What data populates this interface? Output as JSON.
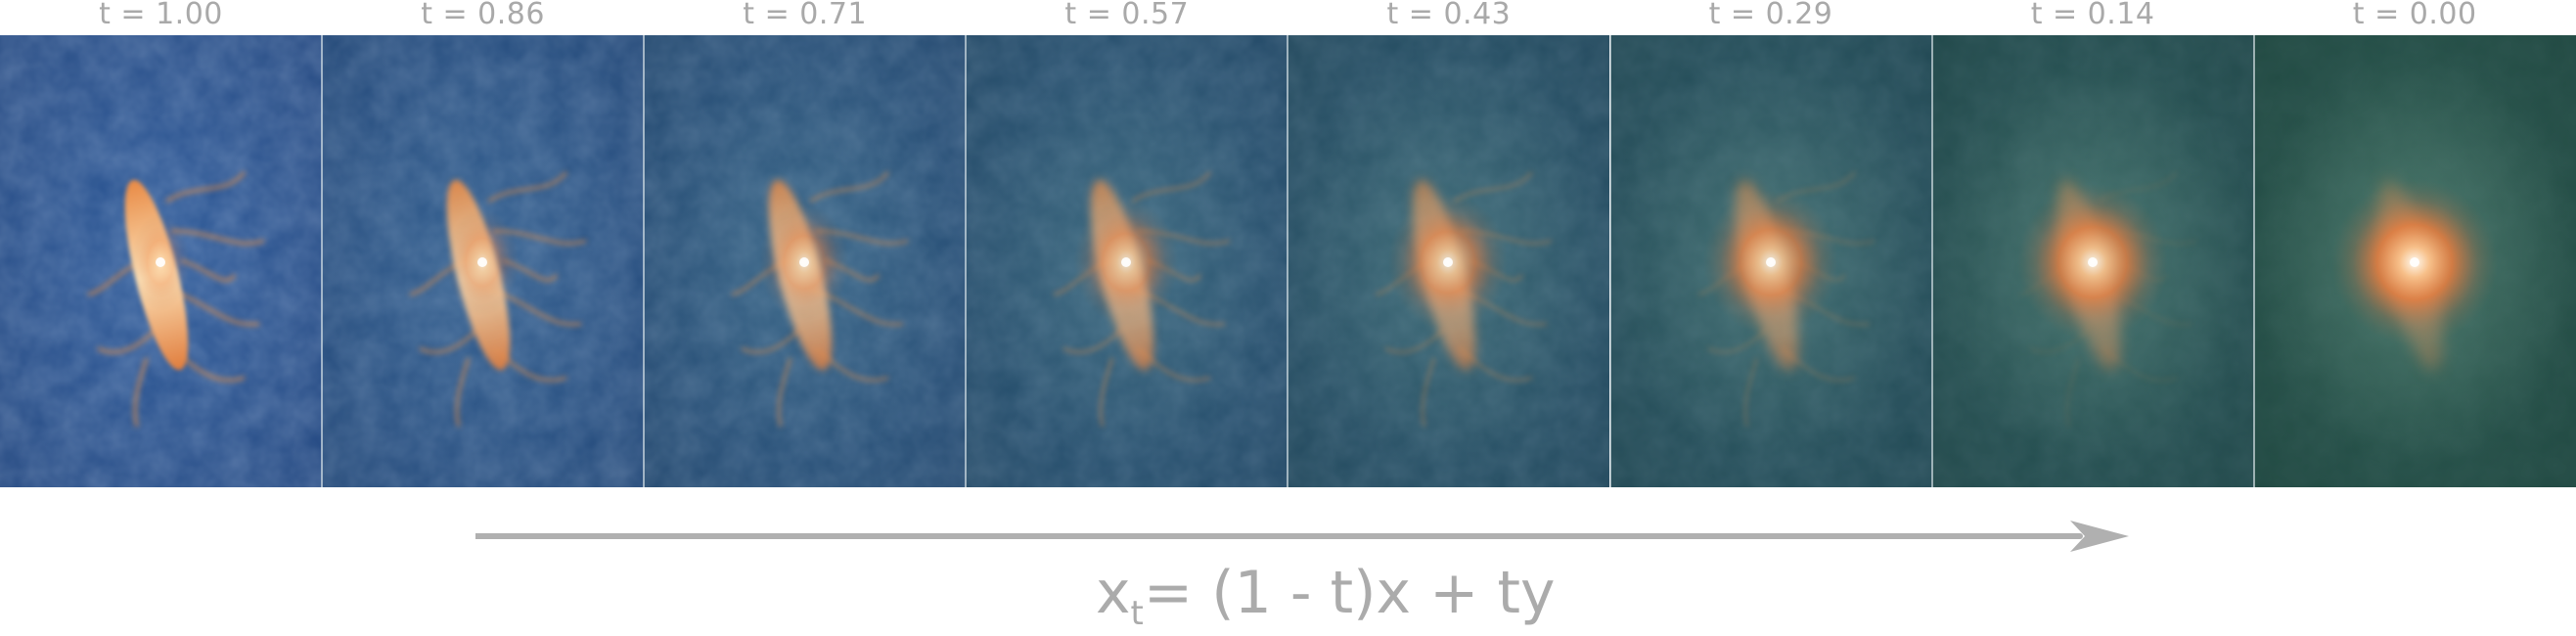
{
  "panels": [
    {
      "label": "t = 1.00",
      "t": 1.0
    },
    {
      "label": "t = 0.86",
      "t": 0.86
    },
    {
      "label": "t = 0.71",
      "t": 0.71
    },
    {
      "label": "t = 0.57",
      "t": 0.57
    },
    {
      "label": "t = 0.43",
      "t": 0.43
    },
    {
      "label": "t = 0.29",
      "t": 0.29
    },
    {
      "label": "t = 0.14",
      "t": 0.14
    },
    {
      "label": "t = 0.00",
      "t": 0.0
    }
  ],
  "colors": {
    "noise_blue": "#2f5b9a",
    "target_green": "#2d5b52",
    "glow_orange": "#f08a3c",
    "glow_white": "#fff6e6",
    "text_gray": "#a9a9a9",
    "arrow_gray": "#b0b0b0"
  },
  "formula": {
    "x": "x",
    "t_subscript": "t",
    "rhs": "= (1 - t)x + ty"
  }
}
